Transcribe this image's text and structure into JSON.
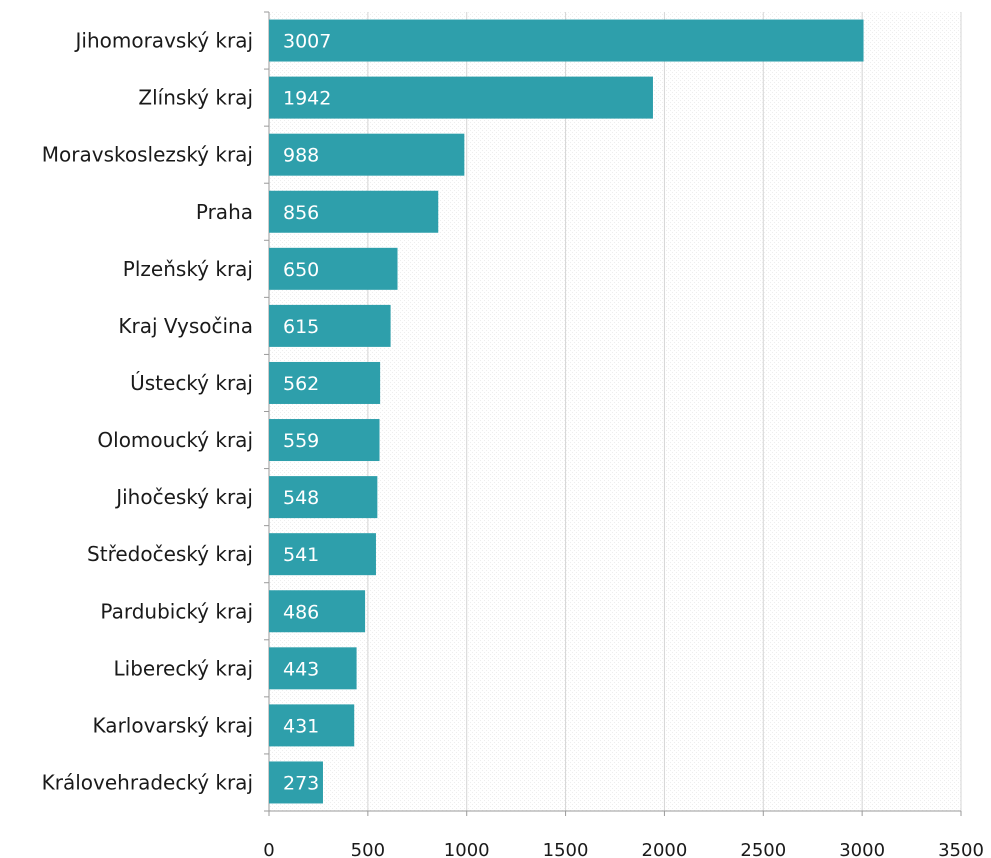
{
  "chart_data": {
    "type": "bar",
    "orientation": "horizontal",
    "categories": [
      "Jihomoravský kraj",
      "Zlínský kraj",
      "Moravskoslezský kraj",
      "Praha",
      "Plzeňský kraj",
      "Kraj Vysočina",
      "Ústecký kraj",
      "Olomoucký kraj",
      "Jihočeský kraj",
      "Středočeský kraj",
      "Pardubický kraj",
      "Liberecký kraj",
      "Karlovarský kraj",
      "Královehradecký kraj"
    ],
    "values": [
      3007,
      1942,
      988,
      856,
      650,
      615,
      562,
      559,
      548,
      541,
      486,
      443,
      431,
      273
    ],
    "value_labels": [
      "3007",
      "1942",
      "988",
      "856",
      "650",
      "615",
      "562",
      "559",
      "548",
      "541",
      "486",
      "443",
      "431",
      "273"
    ],
    "xlim": [
      0,
      3500
    ],
    "xticks": [
      0,
      500,
      1000,
      1500,
      2000,
      2500,
      3000,
      3500
    ],
    "xtick_labels": [
      "0",
      "500",
      "1000",
      "1500",
      "2000",
      "2500",
      "3000",
      "3500"
    ],
    "title": "",
    "xlabel": "",
    "ylabel": "",
    "grid": true,
    "legend": "none",
    "colors": {
      "bar": "#2e9fab",
      "grid": "#d6d6d6",
      "axis": "#9a9a9a",
      "background_pattern": "#eeeeee"
    }
  }
}
